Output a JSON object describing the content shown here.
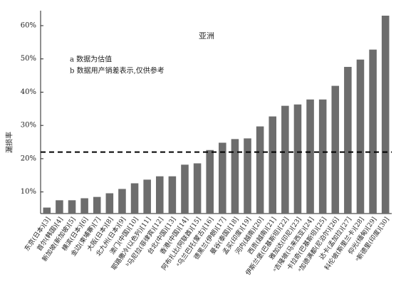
{
  "chart_data": {
    "type": "bar",
    "title": "亚洲",
    "notes": [
      "a 数据为估值",
      "b 数据用产销差表示,仅供参考"
    ],
    "y_label": "漏损率",
    "categories": [
      "东京(日本)[3]",
      "首尔(韩国)[4]",
      "新加坡(新加坡)[5]",
      "横滨(日本)[6]",
      "金边(柬埔寨)[7]",
      "大阪(日本)[8]",
      "北九州(日本)[9]",
      "澳门(中国)[10]",
      "耶路撒冷(以色列)[11]",
      "ᵇ马尼拉(菲律宾)[12]",
      "台北(中国)[13]",
      "香港(中国)[14]",
      "阿布扎比(阿联酋)[15]",
      "ᵃ乌兰巴托(蒙古)[16]",
      "德黑兰(伊朗)[17]",
      "曼谷(泰国)[18]",
      "孟买(印度)[19]",
      "河内(越南)[20]",
      "西贡(越南)[21]",
      "伊斯兰堡(巴基斯坦)[22]",
      "雅加达(印尼)[23]",
      "ᵃ吉隆坡(马来西亚)[24]",
      "卡拉奇(巴基斯坦)[25]",
      "ᵃ加德满都(尼泊尔)[26]",
      "达卡(孟加拉)[27]",
      "科伦坡(斯里兰卡)[28]",
      "仰光(缅甸)[29]",
      "ᵃ新德里(印度)[30]"
    ],
    "values": [
      5.3,
      7.5,
      7.5,
      8.1,
      8.5,
      9.6,
      10.9,
      12.6,
      13.7,
      14.7,
      14.7,
      18.2,
      18.6,
      22.6,
      24.8,
      25.9,
      26.1,
      29.7,
      32.7,
      35.9,
      36.3,
      37.8,
      37.8,
      41.9,
      47.6,
      49.8,
      52.8,
      63
    ],
    "color": "#6d6d6d",
    "reference_line": 22,
    "ylim": [
      3.5,
      64.5
    ],
    "yticks": [
      {
        "value": 10,
        "label": "10%"
      },
      {
        "value": 20,
        "label": "20%"
      },
      {
        "value": 30,
        "label": "30%"
      },
      {
        "value": 40,
        "label": "40%"
      },
      {
        "value": 50,
        "label": "50%"
      },
      {
        "value": 60,
        "label": "60%"
      }
    ],
    "grid": false
  }
}
